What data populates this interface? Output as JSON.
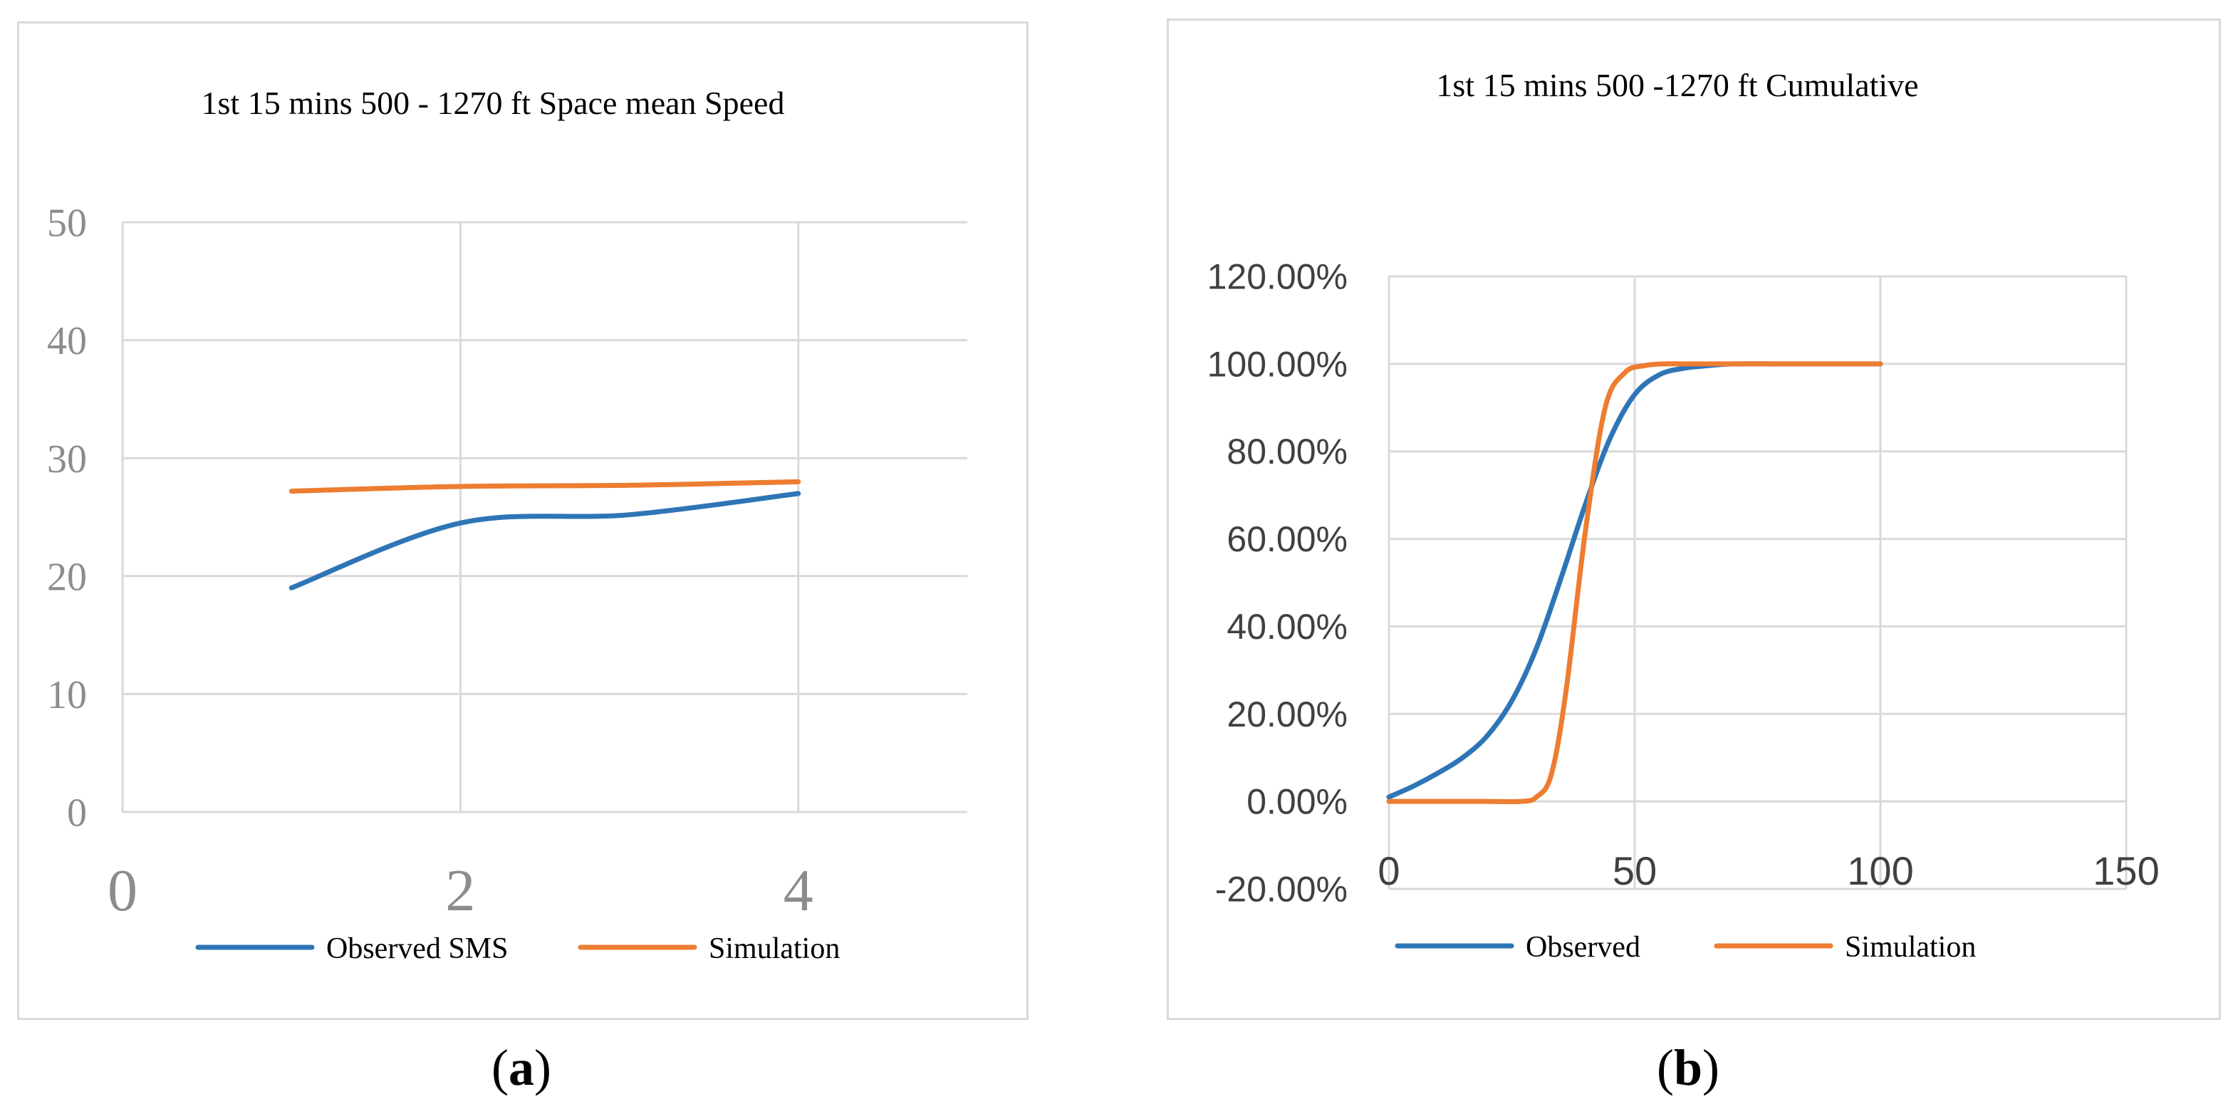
{
  "chart_data": [
    {
      "type": "line",
      "panel_label": "a",
      "title": "1st 15 mins 500 - 1270 ft Space mean Speed",
      "xlabel": "",
      "ylabel": "",
      "xlim": [
        0,
        5
      ],
      "ylim": [
        0,
        50
      ],
      "x_ticks": [
        0,
        2,
        4
      ],
      "y_ticks": [
        0,
        10,
        20,
        30,
        40,
        50
      ],
      "grid": true,
      "legend_position": "bottom",
      "series": [
        {
          "name": "Observed SMS",
          "color": "#2e75b6",
          "x": [
            1,
            2,
            3,
            4
          ],
          "y": [
            19,
            24.5,
            25.2,
            27
          ]
        },
        {
          "name": "Simulation",
          "color": "#ed7d31",
          "x": [
            1,
            2,
            3,
            4
          ],
          "y": [
            27.2,
            27.6,
            27.7,
            28
          ]
        }
      ]
    },
    {
      "type": "line",
      "panel_label": "b",
      "title": "1st 15 mins 500 -1270 ft Cumulative",
      "xlabel": "",
      "ylabel": "",
      "xlim": [
        0,
        150
      ],
      "ylim": [
        -20,
        120
      ],
      "x_ticks": [
        0,
        50,
        100,
        150
      ],
      "y_ticks": [
        -20,
        0,
        20,
        40,
        60,
        80,
        100,
        120
      ],
      "y_tick_labels": [
        "-20.00%",
        "0.00%",
        "20.00%",
        "40.00%",
        "60.00%",
        "80.00%",
        "100.00%",
        "120.00%"
      ],
      "grid": true,
      "legend_position": "bottom",
      "series": [
        {
          "name": "Observed",
          "color": "#2e75b6",
          "x": [
            0,
            5,
            10,
            15,
            20,
            25,
            30,
            35,
            40,
            45,
            50,
            55,
            60,
            65,
            70,
            80,
            90,
            100
          ],
          "y": [
            1,
            3.5,
            6.5,
            10,
            15,
            23,
            35,
            51,
            68,
            83,
            93,
            97.5,
            99,
            99.6,
            100,
            100,
            100,
            100
          ]
        },
        {
          "name": "Simulation",
          "color": "#ed7d31",
          "x": [
            0,
            10,
            20,
            27,
            30,
            33,
            36,
            40,
            44,
            48,
            52,
            56,
            60,
            70,
            80,
            90,
            100
          ],
          "y": [
            0,
            0,
            0,
            0,
            1,
            6,
            25,
            62,
            90,
            98,
            99.6,
            100,
            100,
            100,
            100,
            100,
            100
          ]
        }
      ]
    }
  ],
  "captions": {
    "a": "a",
    "b": "b"
  }
}
